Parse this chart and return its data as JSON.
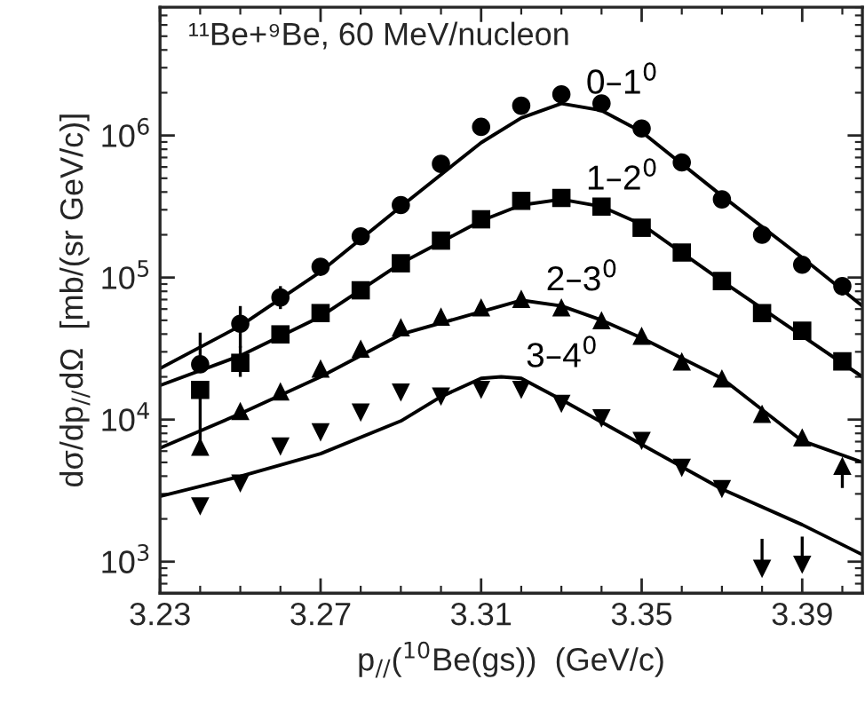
{
  "chart_data": {
    "type": "scatter",
    "xlabel": "p$_{//}$($^{10}$Be(gs))  (GeV/c)",
    "ylabel": "dσ/dp$_{//}$dΩ  [mb/(sr GeV/c)]",
    "x": [
      3.24,
      3.25,
      3.26,
      3.27,
      3.28,
      3.29,
      3.3,
      3.31,
      3.32,
      3.33,
      3.34,
      3.35,
      3.36,
      3.37,
      3.38,
      3.39,
      3.4
    ],
    "series": [
      {
        "marker": "circle",
        "color": "#000000",
        "values": [
          24500,
          47300,
          72400,
          119000,
          195000,
          324000,
          631000,
          1150000,
          1620000,
          1950000,
          1680000,
          1120000,
          646000,
          355000,
          200000,
          123000,
          87000
        ],
        "errors": [
          [
            24500,
            41000
          ],
          [
            32000,
            63000
          ],
          [
            60000,
            87000
          ],
          null,
          null,
          null,
          null,
          null,
          null,
          null,
          null,
          null,
          null,
          null,
          null,
          null,
          [
            75000,
            100000
          ]
        ]
      },
      {
        "marker": "square",
        "color": "#000000",
        "values": [
          16200,
          25100,
          39800,
          56200,
          81300,
          126000,
          182000,
          257000,
          347000,
          363000,
          316000,
          224000,
          150000,
          94400,
          56200,
          42200,
          25700
        ],
        "errors": [
          [
            7000,
            16200
          ],
          [
            20000,
            33000
          ],
          null,
          null,
          null,
          null,
          null,
          null,
          null,
          null,
          null,
          null,
          null,
          null,
          null,
          null,
          null
        ]
      },
      {
        "marker": "triangle",
        "color": "#000000",
        "values": [
          6460,
          11500,
          15800,
          22900,
          31600,
          44700,
          53100,
          61700,
          70800,
          61700,
          50100,
          38900,
          25700,
          19500,
          11000,
          7500,
          4730
        ],
        "errors": [
          null,
          null,
          null,
          null,
          null,
          null,
          null,
          null,
          null,
          null,
          null,
          null,
          null,
          null,
          null,
          null,
          [
            3300,
            4730
          ]
        ]
      },
      {
        "marker": "triangle_down",
        "color": "#000000",
        "values": [
          2450,
          3550,
          6460,
          8130,
          11200,
          15500,
          14500,
          16200,
          16200,
          12900,
          10200,
          7080,
          4570,
          3240,
          890,
          950,
          null
        ],
        "errors": [
          null,
          null,
          null,
          null,
          null,
          null,
          null,
          null,
          null,
          null,
          null,
          null,
          null,
          null,
          [
            890,
            1450
          ],
          [
            950,
            1500
          ],
          null
        ]
      },
      {
        "type": "line",
        "name": "0–1$^{0}$",
        "color": "#000000",
        "x": [
          3.23,
          3.25,
          3.27,
          3.29,
          3.31,
          3.32,
          3.33,
          3.34,
          3.35,
          3.37,
          3.39,
          3.405
        ],
        "values": [
          22900,
          45700,
          110000,
          316000,
          890000,
          1330000,
          1680000,
          1500000,
          1060000,
          376000,
          138000,
          63100
        ]
      },
      {
        "type": "line",
        "name": "1–2$^{0}$",
        "color": "#000000",
        "x": [
          3.23,
          3.25,
          3.27,
          3.29,
          3.31,
          3.32,
          3.33,
          3.34,
          3.35,
          3.37,
          3.39,
          3.405
        ],
        "values": [
          17400,
          28200,
          53100,
          126000,
          251000,
          324000,
          355000,
          316000,
          237000,
          94400,
          38900,
          20000
        ]
      },
      {
        "type": "line",
        "name": "2–3$^{0}$",
        "color": "#000000",
        "x": [
          3.23,
          3.25,
          3.27,
          3.29,
          3.31,
          3.32,
          3.33,
          3.34,
          3.35,
          3.37,
          3.39,
          3.405
        ],
        "values": [
          6310,
          11000,
          20000,
          39800,
          57500,
          69200,
          63100,
          50100,
          37600,
          19500,
          7080,
          5010
        ]
      },
      {
        "type": "line",
        "name": "3–4$^{0}$",
        "color": "#000000",
        "x": [
          3.23,
          3.25,
          3.27,
          3.29,
          3.3,
          3.31,
          3.315,
          3.32,
          3.33,
          3.35,
          3.37,
          3.39,
          3.405
        ],
        "values": [
          2880,
          3980,
          5750,
          9770,
          14500,
          19500,
          20000,
          19500,
          13800,
          6680,
          3240,
          1820,
          1120
        ]
      }
    ],
    "log": "y",
    "xlim": [
      3.23,
      3.405
    ],
    "xticks": [
      3.23,
      3.27,
      3.31,
      3.35,
      3.39
    ],
    "ylim": [
      600,
      8000000
    ],
    "yticks": [
      {
        "value": 1000,
        "label": "10$^{3}$"
      },
      {
        "value": 10000,
        "label": "10$^{4}$"
      },
      {
        "value": 100000,
        "label": "10$^{5}$"
      },
      {
        "value": 1000000,
        "label": "10$^{6}$"
      }
    ],
    "grid": false,
    "legend": false,
    "annotations": [
      "¹¹Be+⁹Be, 60 MeV/nucleon"
    ]
  }
}
